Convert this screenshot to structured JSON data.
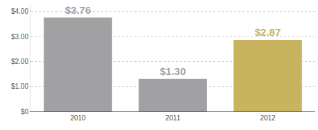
{
  "chart_data": {
    "type": "bar",
    "categories": [
      "2010",
      "2011",
      "2012"
    ],
    "values": [
      3.76,
      1.3,
      2.87
    ],
    "value_labels": [
      "$3.76",
      "$1.30",
      "$2.87"
    ],
    "colors": [
      "#a1a1a4",
      "#a1a1a4",
      "#c8b35f"
    ],
    "data_labels": true,
    "ylim": [
      0,
      4.3
    ],
    "yticks": [
      {
        "value": 0,
        "label": "$0"
      },
      {
        "value": 1,
        "label": "$1.00"
      },
      {
        "value": 2,
        "label": "$2.00"
      },
      {
        "value": 3,
        "label": "$3.00"
      },
      {
        "value": 4,
        "label": "$4.00"
      }
    ],
    "grid": true
  }
}
